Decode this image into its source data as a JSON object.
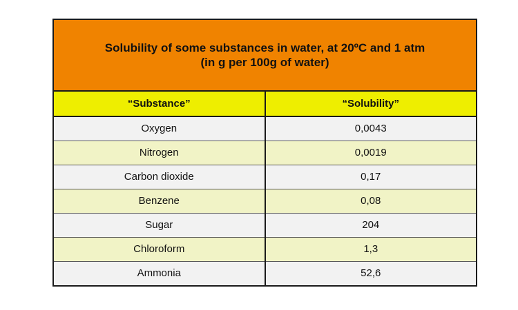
{
  "table": {
    "title_line1": "Solubility of some substances in water, at 20ºC and 1 atm",
    "title_line2": "(in g per 100g of water)",
    "headers": [
      "“Substance”",
      "“Solubility”"
    ],
    "rows": [
      [
        "Oxygen",
        "0,0043"
      ],
      [
        "Nitrogen",
        "0,0019"
      ],
      [
        "Carbon dioxide",
        "0,17"
      ],
      [
        "Benzene",
        "0,08"
      ],
      [
        "Sugar",
        "204"
      ],
      [
        "Chloroform",
        "1,3"
      ],
      [
        "Ammonia",
        "52,6"
      ]
    ]
  },
  "colors": {
    "title_bg": "#f08300",
    "header_bg": "#eeee00",
    "row_light": "#f2f2f2",
    "row_tint": "#f1f3c6"
  }
}
